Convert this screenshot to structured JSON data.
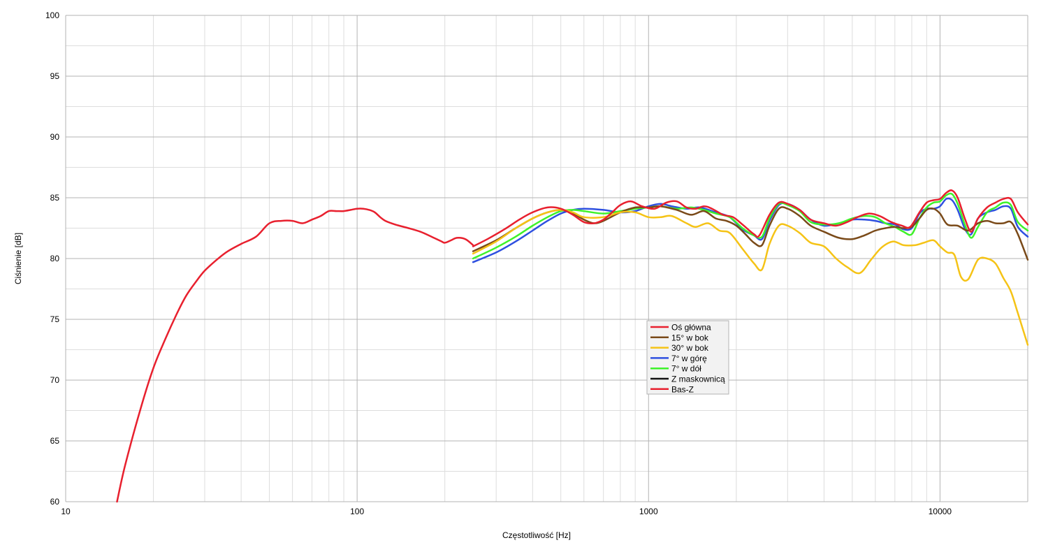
{
  "chart_data": {
    "type": "line",
    "title": "",
    "xlabel": "Częstotliwość [Hz]",
    "ylabel": "Ciśnienie [dB]",
    "x_scale": "log",
    "xlim": [
      10,
      20000
    ],
    "ylim": [
      60,
      100
    ],
    "x_major_ticks": [
      10,
      100,
      1000,
      10000
    ],
    "x_tick_labels": [
      "10",
      "100",
      "1000",
      "10000"
    ],
    "y_ticks": [
      60,
      65,
      70,
      75,
      80,
      85,
      90,
      95,
      100
    ],
    "y_tick_labels": [
      "60",
      "65",
      "70",
      "75",
      "80",
      "85",
      "90",
      "95",
      "100"
    ],
    "grid": true,
    "legend_position": "center-right",
    "series": [
      {
        "name": "Oś główna",
        "color": "#e8202e",
        "points": [
          [
            250,
            81.0
          ],
          [
            280,
            81.6
          ],
          [
            320,
            82.4
          ],
          [
            360,
            83.2
          ],
          [
            400,
            83.8
          ],
          [
            450,
            84.2
          ],
          [
            500,
            84.1
          ],
          [
            550,
            83.6
          ],
          [
            600,
            83.0
          ],
          [
            650,
            82.9
          ],
          [
            700,
            83.2
          ],
          [
            750,
            83.8
          ],
          [
            800,
            84.4
          ],
          [
            870,
            84.7
          ],
          [
            950,
            84.3
          ],
          [
            1050,
            84.1
          ],
          [
            1150,
            84.6
          ],
          [
            1250,
            84.7
          ],
          [
            1350,
            84.2
          ],
          [
            1450,
            84.1
          ],
          [
            1550,
            84.3
          ],
          [
            1650,
            84.1
          ],
          [
            1800,
            83.6
          ],
          [
            1950,
            83.4
          ],
          [
            2100,
            82.8
          ],
          [
            2300,
            82.0
          ],
          [
            2400,
            81.9
          ],
          [
            2600,
            83.6
          ],
          [
            2800,
            84.6
          ],
          [
            3000,
            84.5
          ],
          [
            3300,
            84.0
          ],
          [
            3600,
            83.2
          ],
          [
            4000,
            82.9
          ],
          [
            4400,
            82.7
          ],
          [
            4800,
            83.0
          ],
          [
            5200,
            83.4
          ],
          [
            5700,
            83.7
          ],
          [
            6200,
            83.5
          ],
          [
            6800,
            83.0
          ],
          [
            7400,
            82.7
          ],
          [
            7900,
            82.6
          ],
          [
            8500,
            83.8
          ],
          [
            9000,
            84.6
          ],
          [
            9500,
            84.8
          ],
          [
            10000,
            84.9
          ],
          [
            10500,
            85.4
          ],
          [
            11000,
            85.6
          ],
          [
            11500,
            85.0
          ],
          [
            12200,
            83.2
          ],
          [
            12800,
            82.2
          ],
          [
            13500,
            83.3
          ],
          [
            14500,
            84.2
          ],
          [
            15500,
            84.6
          ],
          [
            16500,
            84.9
          ],
          [
            17500,
            84.9
          ],
          [
            18500,
            83.8
          ],
          [
            20000,
            82.8
          ]
        ]
      },
      {
        "name": "15° w bok",
        "color": "#7a4a19",
        "points": [
          [
            250,
            80.6
          ],
          [
            300,
            81.5
          ],
          [
            350,
            82.5
          ],
          [
            400,
            83.3
          ],
          [
            450,
            83.8
          ],
          [
            500,
            84.0
          ],
          [
            550,
            83.7
          ],
          [
            600,
            83.2
          ],
          [
            650,
            82.9
          ],
          [
            700,
            83.1
          ],
          [
            800,
            83.8
          ],
          [
            900,
            84.2
          ],
          [
            1000,
            84.2
          ],
          [
            1100,
            84.3
          ],
          [
            1250,
            84.0
          ],
          [
            1400,
            83.6
          ],
          [
            1550,
            83.9
          ],
          [
            1700,
            83.3
          ],
          [
            1850,
            83.1
          ],
          [
            2000,
            82.7
          ],
          [
            2150,
            82.0
          ],
          [
            2300,
            81.3
          ],
          [
            2450,
            81.1
          ],
          [
            2600,
            82.7
          ],
          [
            2800,
            84.1
          ],
          [
            3000,
            84.1
          ],
          [
            3300,
            83.5
          ],
          [
            3600,
            82.7
          ],
          [
            4000,
            82.2
          ],
          [
            4500,
            81.7
          ],
          [
            5000,
            81.6
          ],
          [
            5500,
            81.9
          ],
          [
            6000,
            82.3
          ],
          [
            6500,
            82.5
          ],
          [
            7000,
            82.6
          ],
          [
            7500,
            82.5
          ],
          [
            8000,
            82.6
          ],
          [
            8500,
            83.3
          ],
          [
            9000,
            84.0
          ],
          [
            9500,
            84.1
          ],
          [
            10000,
            83.7
          ],
          [
            10600,
            82.8
          ],
          [
            11500,
            82.7
          ],
          [
            12500,
            82.3
          ],
          [
            13500,
            82.9
          ],
          [
            14500,
            83.1
          ],
          [
            15500,
            82.9
          ],
          [
            16500,
            82.9
          ],
          [
            17500,
            83.0
          ],
          [
            18500,
            82.0
          ],
          [
            20000,
            79.9
          ]
        ]
      },
      {
        "name": "30° w bok",
        "color": "#f5c316",
        "points": [
          [
            250,
            80.4
          ],
          [
            300,
            81.4
          ],
          [
            350,
            82.5
          ],
          [
            400,
            83.3
          ],
          [
            450,
            83.8
          ],
          [
            500,
            84.0
          ],
          [
            550,
            83.8
          ],
          [
            600,
            83.4
          ],
          [
            700,
            83.4
          ],
          [
            800,
            83.8
          ],
          [
            900,
            83.8
          ],
          [
            1000,
            83.4
          ],
          [
            1100,
            83.4
          ],
          [
            1200,
            83.5
          ],
          [
            1350,
            82.9
          ],
          [
            1450,
            82.6
          ],
          [
            1600,
            82.9
          ],
          [
            1750,
            82.3
          ],
          [
            1900,
            82.1
          ],
          [
            2100,
            80.8
          ],
          [
            2300,
            79.6
          ],
          [
            2450,
            79.1
          ],
          [
            2600,
            81.2
          ],
          [
            2800,
            82.7
          ],
          [
            3000,
            82.7
          ],
          [
            3300,
            82.1
          ],
          [
            3600,
            81.3
          ],
          [
            4000,
            81.0
          ],
          [
            4400,
            80.0
          ],
          [
            4800,
            79.3
          ],
          [
            5300,
            78.8
          ],
          [
            5800,
            79.9
          ],
          [
            6300,
            80.9
          ],
          [
            6900,
            81.4
          ],
          [
            7500,
            81.1
          ],
          [
            8200,
            81.1
          ],
          [
            8800,
            81.3
          ],
          [
            9500,
            81.5
          ],
          [
            10000,
            81.0
          ],
          [
            10600,
            80.5
          ],
          [
            11200,
            80.3
          ],
          [
            11800,
            78.5
          ],
          [
            12500,
            78.3
          ],
          [
            13500,
            79.9
          ],
          [
            14500,
            80.0
          ],
          [
            15500,
            79.6
          ],
          [
            16500,
            78.4
          ],
          [
            17500,
            77.3
          ],
          [
            18500,
            75.5
          ],
          [
            20000,
            72.9
          ]
        ]
      },
      {
        "name": "7° w górę",
        "color": "#2e50e0",
        "points": [
          [
            250,
            79.7
          ],
          [
            300,
            80.5
          ],
          [
            350,
            81.4
          ],
          [
            400,
            82.3
          ],
          [
            450,
            83.1
          ],
          [
            500,
            83.7
          ],
          [
            550,
            84.0
          ],
          [
            600,
            84.1
          ],
          [
            700,
            84.0
          ],
          [
            800,
            83.8
          ],
          [
            900,
            83.9
          ],
          [
            1000,
            84.3
          ],
          [
            1100,
            84.5
          ],
          [
            1200,
            84.3
          ],
          [
            1350,
            84.1
          ],
          [
            1500,
            84.2
          ],
          [
            1700,
            83.8
          ],
          [
            1900,
            83.4
          ],
          [
            2100,
            82.4
          ],
          [
            2300,
            81.9
          ],
          [
            2450,
            81.6
          ],
          [
            2600,
            83.1
          ],
          [
            2800,
            84.4
          ],
          [
            3000,
            84.5
          ],
          [
            3300,
            84.0
          ],
          [
            3600,
            83.2
          ],
          [
            4000,
            82.7
          ],
          [
            4500,
            82.9
          ],
          [
            5000,
            83.2
          ],
          [
            5500,
            83.2
          ],
          [
            6000,
            83.1
          ],
          [
            6500,
            82.9
          ],
          [
            7000,
            82.8
          ],
          [
            7500,
            82.4
          ],
          [
            8000,
            82.5
          ],
          [
            8500,
            83.7
          ],
          [
            9000,
            84.1
          ],
          [
            9500,
            84.1
          ],
          [
            10000,
            84.3
          ],
          [
            10500,
            84.9
          ],
          [
            11000,
            84.8
          ],
          [
            11500,
            84.0
          ],
          [
            12200,
            82.4
          ],
          [
            12800,
            82.0
          ],
          [
            13500,
            83.3
          ],
          [
            14500,
            83.8
          ],
          [
            15500,
            84.0
          ],
          [
            16500,
            84.3
          ],
          [
            17500,
            84.1
          ],
          [
            18500,
            82.6
          ],
          [
            20000,
            81.8
          ]
        ]
      },
      {
        "name": "7° w dół",
        "color": "#3ef22a",
        "points": [
          [
            250,
            80.0
          ],
          [
            300,
            80.9
          ],
          [
            350,
            81.8
          ],
          [
            400,
            82.7
          ],
          [
            450,
            83.4
          ],
          [
            500,
            83.9
          ],
          [
            550,
            84.0
          ],
          [
            600,
            83.9
          ],
          [
            700,
            83.7
          ],
          [
            800,
            83.9
          ],
          [
            900,
            84.1
          ],
          [
            1000,
            84.2
          ],
          [
            1100,
            84.3
          ],
          [
            1250,
            84.1
          ],
          [
            1400,
            84.2
          ],
          [
            1550,
            84.0
          ],
          [
            1700,
            83.7
          ],
          [
            1900,
            83.4
          ],
          [
            2100,
            82.5
          ],
          [
            2300,
            81.9
          ],
          [
            2450,
            81.8
          ],
          [
            2600,
            83.3
          ],
          [
            2800,
            84.5
          ],
          [
            3000,
            84.4
          ],
          [
            3300,
            83.9
          ],
          [
            3600,
            83.0
          ],
          [
            4000,
            82.8
          ],
          [
            4500,
            82.9
          ],
          [
            5000,
            83.3
          ],
          [
            5500,
            83.5
          ],
          [
            6000,
            83.4
          ],
          [
            6500,
            82.9
          ],
          [
            7000,
            82.6
          ],
          [
            7500,
            82.2
          ],
          [
            8000,
            82.0
          ],
          [
            8500,
            83.3
          ],
          [
            9000,
            84.2
          ],
          [
            9500,
            84.6
          ],
          [
            10000,
            84.7
          ],
          [
            10500,
            85.2
          ],
          [
            11000,
            85.3
          ],
          [
            11500,
            84.5
          ],
          [
            12200,
            82.7
          ],
          [
            12800,
            81.7
          ],
          [
            13500,
            82.6
          ],
          [
            14500,
            83.8
          ],
          [
            15500,
            84.2
          ],
          [
            16500,
            84.6
          ],
          [
            17500,
            84.4
          ],
          [
            18500,
            83.0
          ],
          [
            20000,
            82.3
          ]
        ]
      },
      {
        "name": "Z maskownicą",
        "color": "#111111",
        "points": []
      },
      {
        "name": "Bas-Z",
        "color": "#e8202e",
        "points": [
          [
            15,
            60.0
          ],
          [
            16,
            63.0
          ],
          [
            18,
            67.5
          ],
          [
            20,
            71.0
          ],
          [
            22,
            73.4
          ],
          [
            24,
            75.4
          ],
          [
            26,
            77.0
          ],
          [
            28,
            78.1
          ],
          [
            30,
            79.0
          ],
          [
            33,
            79.9
          ],
          [
            36,
            80.6
          ],
          [
            40,
            81.2
          ],
          [
            45,
            81.8
          ],
          [
            50,
            82.9
          ],
          [
            55,
            83.1
          ],
          [
            60,
            83.1
          ],
          [
            65,
            82.9
          ],
          [
            70,
            83.2
          ],
          [
            75,
            83.5
          ],
          [
            80,
            83.9
          ],
          [
            85,
            83.9
          ],
          [
            90,
            83.9
          ],
          [
            95,
            84.0
          ],
          [
            100,
            84.1
          ],
          [
            105,
            84.1
          ],
          [
            110,
            84.0
          ],
          [
            115,
            83.8
          ],
          [
            120,
            83.4
          ],
          [
            125,
            83.1
          ],
          [
            135,
            82.8
          ],
          [
            150,
            82.5
          ],
          [
            165,
            82.2
          ],
          [
            180,
            81.8
          ],
          [
            195,
            81.4
          ],
          [
            200,
            81.3
          ],
          [
            210,
            81.5
          ],
          [
            220,
            81.7
          ],
          [
            235,
            81.6
          ],
          [
            250,
            81.1
          ]
        ]
      }
    ]
  }
}
